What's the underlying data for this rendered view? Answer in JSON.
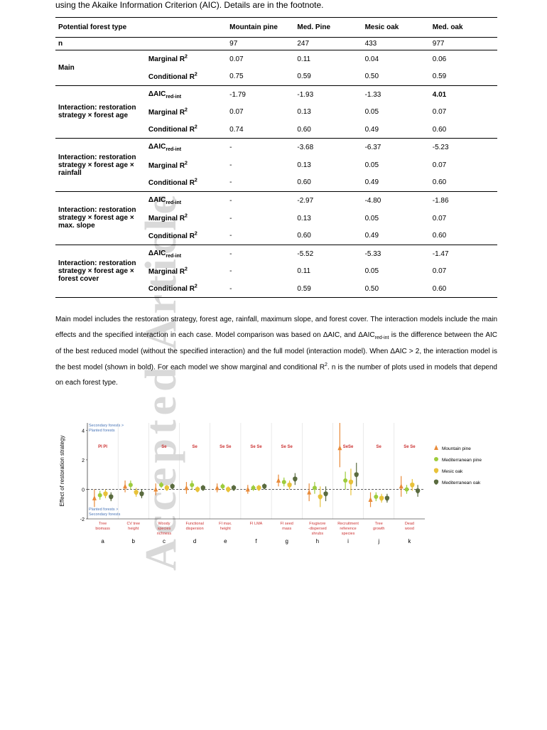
{
  "lead_text": "using the Akaike Information Criterion (AIC). Details are in the footnote.",
  "table": {
    "header": [
      "Potential forest type",
      "",
      "Mountain pine",
      "Med. Pine",
      "Mesic oak",
      "Med. oak"
    ],
    "n_row": [
      "n",
      "",
      "97",
      "247",
      "433",
      "977"
    ],
    "groups": [
      {
        "label": "Main",
        "rows": [
          {
            "metric": "Marginal R²",
            "v": [
              "0.07",
              "0.11",
              "0.04",
              "0.06"
            ]
          },
          {
            "metric": "Conditional R²",
            "v": [
              "0.75",
              "0.59",
              "0.50",
              "0.59"
            ]
          }
        ]
      },
      {
        "label": "Interaction: restoration strategy × forest age",
        "rows": [
          {
            "metric": "ΔAIC_red-int",
            "v": [
              "-1.79",
              "-1.93",
              "-1.33",
              "4.01"
            ],
            "bold": [
              false,
              false,
              false,
              true
            ]
          },
          {
            "metric": "Marginal R²",
            "v": [
              "0.07",
              "0.13",
              "0.05",
              "0.07"
            ]
          },
          {
            "metric": "Conditional R²",
            "v": [
              "0.74",
              "0.60",
              "0.49",
              "0.60"
            ]
          }
        ]
      },
      {
        "label": "Interaction: restoration strategy × forest age × rainfall",
        "rows": [
          {
            "metric": "ΔAIC_red-int",
            "v": [
              "-",
              "-3.68",
              "-6.37",
              "-5.23"
            ]
          },
          {
            "metric": "Marginal R²",
            "v": [
              "-",
              "0.13",
              "0.05",
              "0.07"
            ]
          },
          {
            "metric": "Conditional R²",
            "v": [
              "-",
              "0.60",
              "0.49",
              "0.60"
            ]
          }
        ]
      },
      {
        "label": "Interaction: restoration strategy × forest age × max. slope",
        "rows": [
          {
            "metric": "ΔAIC_red-int",
            "v": [
              "-",
              "-2.97",
              "-4.80",
              "-1.86"
            ]
          },
          {
            "metric": "Marginal R²",
            "v": [
              "-",
              "0.13",
              "0.05",
              "0.07"
            ]
          },
          {
            "metric": "Conditional R²",
            "v": [
              "-",
              "0.60",
              "0.49",
              "0.60"
            ]
          }
        ]
      },
      {
        "label": "Interaction: restoration strategy × forest age × forest cover",
        "rows": [
          {
            "metric": "ΔAIC_red-int",
            "v": [
              "-",
              "-5.52",
              "-5.33",
              "-1.47"
            ]
          },
          {
            "metric": "Marginal R²",
            "v": [
              "-",
              "0.11",
              "0.05",
              "0.07"
            ]
          },
          {
            "metric": "Conditional R²",
            "v": [
              "-",
              "0.59",
              "0.50",
              "0.60"
            ]
          }
        ]
      }
    ]
  },
  "caption": "Main model includes the restoration strategy, forest age, rainfall, maximum slope, and forest cover. The interaction models include the main effects and the specified interaction in each case. Model comparison was based on ΔAIC, and ΔAIC_red-int is the difference between the AIC of the best reduced model (without the specified interaction) and the full model (interaction model). When ΔAIC > 2, the interaction model is the best model (shown in bold). For each model we show marginal and conditional R². n is the number of plots used in models that depend on each forest type.",
  "chart": {
    "y_label": "Effect of restoration strategy",
    "y_top_label1": "Secondary forests >",
    "y_top_label2": "Planted forests",
    "y_bot_label1": "Planted forests >",
    "y_bot_label2": "Secondary forests",
    "y_ticks": [
      -2,
      0,
      2,
      4
    ],
    "colors": {
      "mountain_pine": "#e98b3a",
      "med_pine": "#9dcc3c",
      "mesic_oak": "#e8c23a",
      "med_oak": "#5a6b3f"
    },
    "legend": [
      {
        "label": "Mountain pine",
        "color": "#e98b3a"
      },
      {
        "label": "Mediterranean pine",
        "color": "#9dcc3c"
      },
      {
        "label": "Mesic oak",
        "color": "#e8c23a"
      },
      {
        "label": "Mediterranean oak",
        "color": "#5a6b3f"
      }
    ],
    "panels": [
      {
        "letter": "a",
        "label": "Tree\nbiomass",
        "sig": "Pl Pl",
        "sig_color": "#cc3333",
        "points": [
          {
            "s": "mountain_pine",
            "y": -0.6,
            "lo": -1.2,
            "hi": 0.0
          },
          {
            "s": "med_pine",
            "y": -0.4,
            "lo": -0.7,
            "hi": -0.1
          },
          {
            "s": "mesic_oak",
            "y": -0.3,
            "lo": -0.6,
            "hi": 0.0
          },
          {
            "s": "med_oak",
            "y": -0.5,
            "lo": -0.8,
            "hi": -0.2
          }
        ]
      },
      {
        "letter": "b",
        "label": "CV tree\nheight",
        "sig": "",
        "sig_color": "",
        "points": [
          {
            "s": "mountain_pine",
            "y": 0.2,
            "lo": -0.2,
            "hi": 0.6
          },
          {
            "s": "med_pine",
            "y": 0.3,
            "lo": 0.0,
            "hi": 0.6
          },
          {
            "s": "mesic_oak",
            "y": -0.2,
            "lo": -0.5,
            "hi": 0.1
          },
          {
            "s": "med_oak",
            "y": -0.3,
            "lo": -0.6,
            "hi": 0.0
          }
        ]
      },
      {
        "letter": "c",
        "label": "Woody\nspecies\nrichness",
        "sig": "Se",
        "sig_color": "#cc3333",
        "points": [
          {
            "s": "mountain_pine",
            "y": 0.0,
            "lo": -0.4,
            "hi": 0.4
          },
          {
            "s": "med_pine",
            "y": 0.3,
            "lo": 0.1,
            "hi": 0.5
          },
          {
            "s": "mesic_oak",
            "y": 0.1,
            "lo": -0.1,
            "hi": 0.3
          },
          {
            "s": "med_oak",
            "y": 0.2,
            "lo": 0.0,
            "hi": 0.4
          }
        ]
      },
      {
        "letter": "d",
        "label": "Functional\ndispersion",
        "sig": "Se",
        "sig_color": "#cc3333",
        "points": [
          {
            "s": "mountain_pine",
            "y": 0.1,
            "lo": -0.3,
            "hi": 0.5
          },
          {
            "s": "med_pine",
            "y": 0.3,
            "lo": 0.0,
            "hi": 0.6
          },
          {
            "s": "mesic_oak",
            "y": 0.0,
            "lo": -0.2,
            "hi": 0.2
          },
          {
            "s": "med_oak",
            "y": 0.1,
            "lo": -0.1,
            "hi": 0.3
          }
        ]
      },
      {
        "letter": "e",
        "label": "FI max.\nheight",
        "sig": "Se Se",
        "sig_color": "#cc3333",
        "points": [
          {
            "s": "mountain_pine",
            "y": 0.1,
            "lo": -0.2,
            "hi": 0.4
          },
          {
            "s": "med_pine",
            "y": 0.2,
            "lo": 0.0,
            "hi": 0.4
          },
          {
            "s": "mesic_oak",
            "y": 0.0,
            "lo": -0.2,
            "hi": 0.2
          },
          {
            "s": "med_oak",
            "y": 0.1,
            "lo": -0.1,
            "hi": 0.3
          }
        ]
      },
      {
        "letter": "f",
        "label": "FI LMA",
        "sig": "Se Se",
        "sig_color": "#cc3333",
        "points": [
          {
            "s": "mountain_pine",
            "y": 0.0,
            "lo": -0.3,
            "hi": 0.3
          },
          {
            "s": "med_pine",
            "y": 0.1,
            "lo": -0.1,
            "hi": 0.3
          },
          {
            "s": "mesic_oak",
            "y": 0.1,
            "lo": -0.1,
            "hi": 0.3
          },
          {
            "s": "med_oak",
            "y": 0.2,
            "lo": 0.0,
            "hi": 0.4
          }
        ]
      },
      {
        "letter": "g",
        "label": "FI seed\nmass",
        "sig": "Se Se",
        "sig_color": "#cc3333",
        "points": [
          {
            "s": "mountain_pine",
            "y": 0.6,
            "lo": 0.2,
            "hi": 1.0
          },
          {
            "s": "med_pine",
            "y": 0.5,
            "lo": 0.2,
            "hi": 0.8
          },
          {
            "s": "mesic_oak",
            "y": 0.3,
            "lo": 0.0,
            "hi": 0.6
          },
          {
            "s": "med_oak",
            "y": 0.7,
            "lo": 0.3,
            "hi": 1.1
          }
        ]
      },
      {
        "letter": "h",
        "label": "Frugivore\n-dispersed\nshrubs",
        "sig": "",
        "sig_color": "",
        "points": [
          {
            "s": "mountain_pine",
            "y": -0.2,
            "lo": -0.8,
            "hi": 0.4
          },
          {
            "s": "med_pine",
            "y": 0.1,
            "lo": -0.3,
            "hi": 0.5
          },
          {
            "s": "mesic_oak",
            "y": -0.5,
            "lo": -1.2,
            "hi": 0.2
          },
          {
            "s": "med_oak",
            "y": -0.3,
            "lo": -0.8,
            "hi": 0.2
          }
        ]
      },
      {
        "letter": "i",
        "label": "Recruitment\nreference\nspecies",
        "sig": "SeSe",
        "sig_color": "#cc3333",
        "points": [
          {
            "s": "mountain_pine",
            "y": 2.8,
            "lo": 1.5,
            "hi": 4.5
          },
          {
            "s": "med_pine",
            "y": 0.6,
            "lo": 0.0,
            "hi": 1.2
          },
          {
            "s": "mesic_oak",
            "y": 0.5,
            "lo": -0.4,
            "hi": 1.4
          },
          {
            "s": "med_oak",
            "y": 1.0,
            "lo": 0.2,
            "hi": 1.8
          }
        ]
      },
      {
        "letter": "j",
        "label": "Tree\ngrowth",
        "sig": "Se",
        "sig_color": "#cc3333",
        "points": [
          {
            "s": "mountain_pine",
            "y": -0.7,
            "lo": -1.2,
            "hi": -0.2
          },
          {
            "s": "med_pine",
            "y": -0.5,
            "lo": -0.8,
            "hi": -0.2
          },
          {
            "s": "mesic_oak",
            "y": -0.6,
            "lo": -0.9,
            "hi": -0.3
          },
          {
            "s": "med_oak",
            "y": -0.6,
            "lo": -0.9,
            "hi": -0.3
          }
        ]
      },
      {
        "letter": "k",
        "label": "Dead\nwood",
        "sig": "Se Se",
        "sig_color": "#cc3333",
        "points": [
          {
            "s": "mountain_pine",
            "y": 0.2,
            "lo": -0.5,
            "hi": 0.9
          },
          {
            "s": "med_pine",
            "y": 0.0,
            "lo": -0.3,
            "hi": 0.3
          },
          {
            "s": "mesic_oak",
            "y": 0.3,
            "lo": -0.1,
            "hi": 0.7
          },
          {
            "s": "med_oak",
            "y": -0.1,
            "lo": -0.5,
            "hi": 0.3
          }
        ]
      }
    ]
  }
}
